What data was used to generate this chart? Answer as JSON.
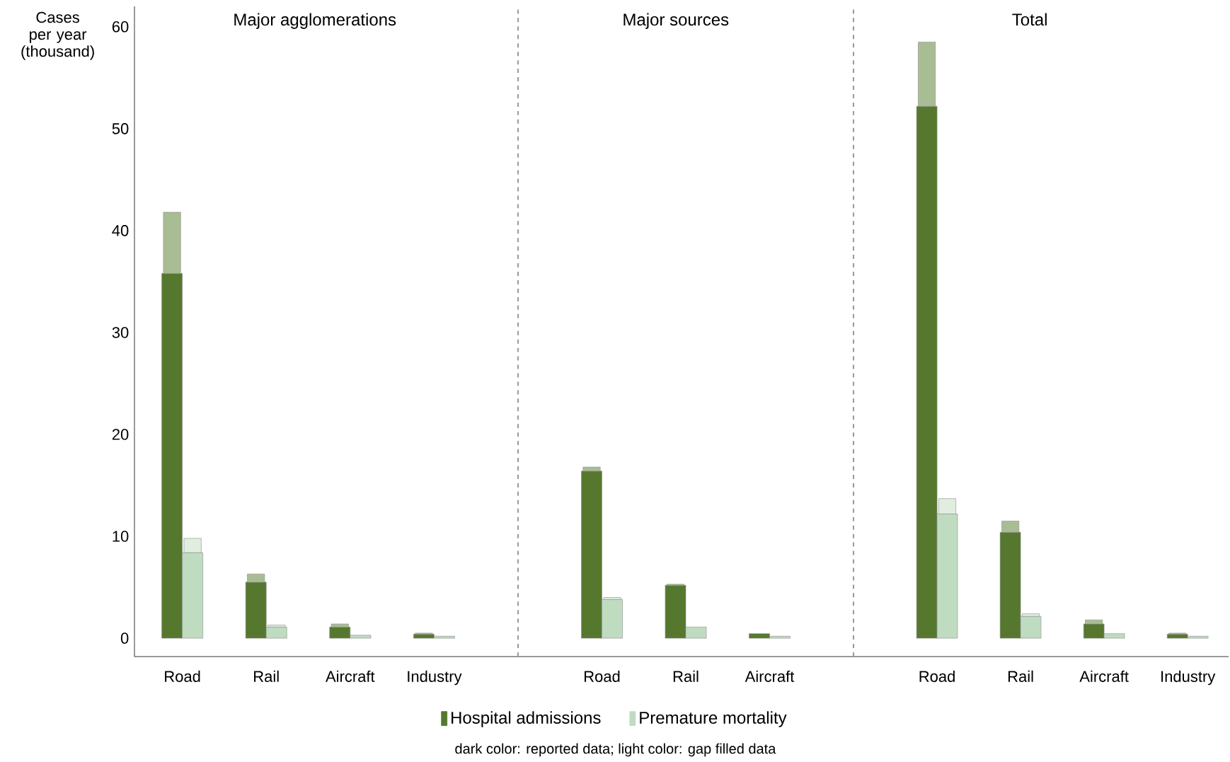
{
  "chart_data": [
    {
      "type": "bar",
      "title": "Major agglomerations",
      "ylabel": "Cases per year (thousand)",
      "categories": [
        "Road",
        "Rail",
        "Aircraft",
        "Industry"
      ],
      "ylim": [
        -1.8,
        62
      ],
      "yticks": [
        0,
        10,
        20,
        30,
        40,
        50,
        60
      ],
      "grid": false,
      "series": [
        {
          "color": "#56782e",
          "values": [
            35.8,
            5.5,
            1.1,
            0.4
          ]
        },
        {
          "color": "#a9bd94",
          "values": [
            6.0,
            0.8,
            0.3,
            0.1
          ],
          "base": [
            35.8,
            5.5,
            1.1,
            0.4
          ]
        },
        {
          "color": "#bfdcc0",
          "values": [
            8.4,
            1.1,
            0.3,
            0.2
          ]
        },
        {
          "color": "#e0eee0",
          "values": [
            1.4,
            0.2,
            null,
            null
          ],
          "base": [
            8.4,
            1.1,
            null,
            null
          ]
        }
      ]
    },
    {
      "type": "bar",
      "title": "Major sources",
      "categories": [
        "Road",
        "Rail",
        "Aircraft"
      ],
      "ylim": [
        -1.8,
        62
      ],
      "tick_labels": "x",
      "grid": false,
      "legend": "bottom",
      "annotations": [
        "dark color: reported data; light color: gap filled data"
      ],
      "series": [
        {
          "name": "Hospital admissions",
          "color": "#56782e",
          "values": [
            16.4,
            5.2,
            0.45
          ]
        },
        {
          "color": "#a9bd94",
          "values": [
            0.4,
            0.1,
            null
          ],
          "base": [
            16.4,
            5.2,
            null
          ]
        },
        {
          "name": "Premature mortality",
          "color": "#bfdcc0",
          "values": [
            3.8,
            1.1,
            0.2
          ]
        },
        {
          "color": "#e0eee0",
          "values": [
            0.2,
            null,
            null
          ],
          "base": [
            3.8,
            null,
            null
          ]
        }
      ]
    },
    {
      "type": "bar",
      "title": "Total",
      "categories": [
        "Road",
        "Rail",
        "Aircraft",
        "Industry"
      ],
      "ylim": [
        -1.8,
        62
      ],
      "tick_labels": "x",
      "grid": false,
      "series": [
        {
          "color": "#56782e",
          "values": [
            52.2,
            10.4,
            1.4,
            0.4
          ]
        },
        {
          "color": "#a9bd94",
          "values": [
            6.3,
            1.1,
            0.4,
            0.1
          ],
          "base": [
            52.2,
            10.4,
            1.4,
            0.4
          ]
        },
        {
          "color": "#bfdcc0",
          "values": [
            12.2,
            2.15,
            0.45,
            0.2
          ]
        },
        {
          "color": "#e0eee0",
          "values": [
            1.5,
            0.25,
            null,
            null
          ],
          "base": [
            12.2,
            2.15,
            null,
            null
          ]
        }
      ]
    }
  ]
}
